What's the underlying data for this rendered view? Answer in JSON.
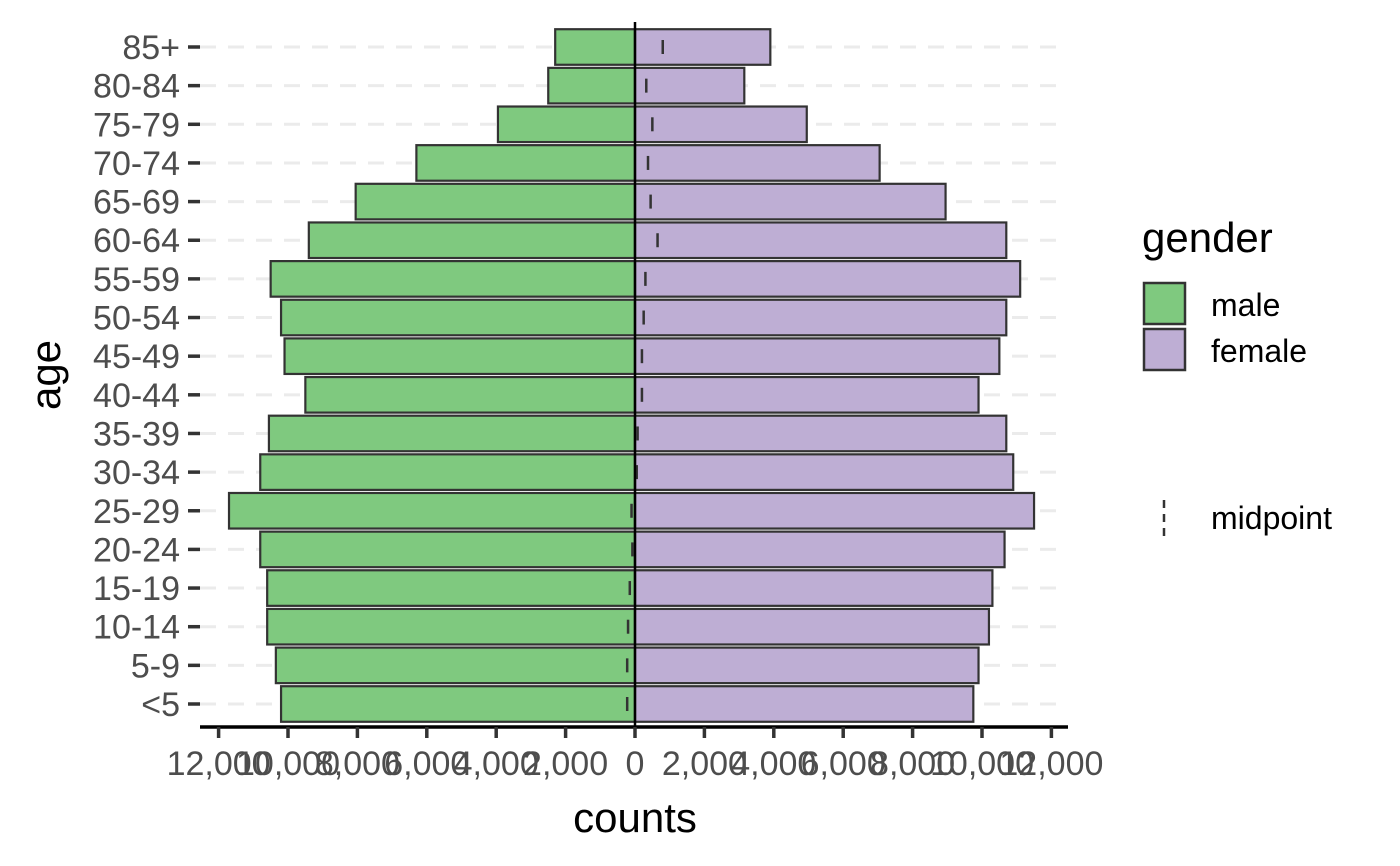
{
  "chart_data": {
    "type": "bar",
    "orientation": "horizontal",
    "title": "",
    "xlabel": "counts",
    "ylabel": "age",
    "xlim": [
      -12500,
      12500
    ],
    "x_ticks": [
      -12000,
      -10000,
      -8000,
      -6000,
      -4000,
      -2000,
      0,
      2000,
      4000,
      6000,
      8000,
      10000,
      12000
    ],
    "x_tick_labels": [
      "12,000",
      "10,000",
      "8,000",
      "6,000",
      "4,000",
      "2,000",
      "0",
      "2,000",
      "4,000",
      "6,000",
      "8,000",
      "10,000",
      "12,000"
    ],
    "grid": "horizontal dashed",
    "legend_position": "right",
    "categories": [
      "<5",
      "5-9",
      "10-14",
      "15-19",
      "20-24",
      "25-29",
      "30-34",
      "35-39",
      "40-44",
      "45-49",
      "50-54",
      "55-59",
      "60-64",
      "65-69",
      "70-74",
      "75-79",
      "80-84",
      "85+"
    ],
    "series": [
      {
        "name": "male",
        "color": "#7fc97f",
        "values": [
          10200,
          10350,
          10600,
          10600,
          10800,
          11700,
          10800,
          10550,
          9500,
          10100,
          10200,
          10500,
          9400,
          8050,
          6300,
          3950,
          2500,
          2300
        ]
      },
      {
        "name": "female",
        "color": "#beaed4",
        "values": [
          9750,
          9900,
          10200,
          10300,
          10650,
          11500,
          10900,
          10700,
          9900,
          10500,
          10700,
          11100,
          10700,
          8950,
          7050,
          4950,
          3150,
          3900
        ]
      }
    ],
    "midpoint": {
      "name": "midpoint",
      "values": [
        -225,
        -225,
        -200,
        -150,
        -75,
        -100,
        50,
        75,
        200,
        200,
        250,
        300,
        650,
        450,
        375,
        500,
        325,
        800
      ]
    }
  },
  "legend": {
    "title": "gender",
    "items": [
      {
        "label": "male",
        "color": "#7fc97f"
      },
      {
        "label": "female",
        "color": "#beaed4"
      }
    ],
    "midpoint_label": "midpoint"
  }
}
